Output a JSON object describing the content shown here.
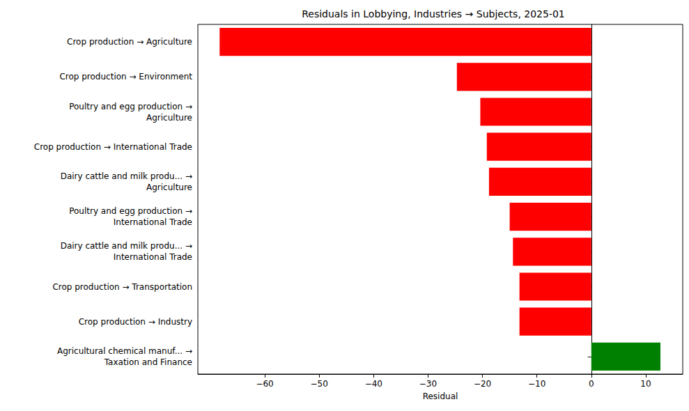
{
  "chart_data": {
    "type": "bar",
    "orientation": "horizontal",
    "title": "Residuals in Lobbying, Industries → Subjects, 2025-01",
    "xlabel": "Residual",
    "categories": [
      "Crop production → Agriculture",
      "Crop production → Environment",
      "Poultry and egg production →\nAgriculture",
      "Crop production → International Trade",
      "Dairy cattle and milk produ... →\nAgriculture",
      "Poultry and egg production →\nInternational Trade",
      "Dairy cattle and milk produ... →\nInternational Trade",
      "Crop production → Transportation",
      "Crop production → Industry",
      "Agricultural chemical manuf... →\nTaxation and Finance"
    ],
    "values": [
      -68.3,
      -24.7,
      -20.4,
      -19.2,
      -18.8,
      -15.0,
      -14.4,
      -13.2,
      -13.2,
      12.7
    ],
    "colors": [
      "#ff0000",
      "#ff0000",
      "#ff0000",
      "#ff0000",
      "#ff0000",
      "#ff0000",
      "#ff0000",
      "#ff0000",
      "#ff0000",
      "#008000"
    ],
    "xlim": [
      -72.3,
      16.8
    ],
    "xticks": [
      {
        "value": -60,
        "label": "−60"
      },
      {
        "value": -50,
        "label": "−50"
      },
      {
        "value": -40,
        "label": "−40"
      },
      {
        "value": -30,
        "label": "−30"
      },
      {
        "value": -20,
        "label": "−20"
      },
      {
        "value": -10,
        "label": "−10"
      },
      0,
      10
    ],
    "grid": false
  }
}
